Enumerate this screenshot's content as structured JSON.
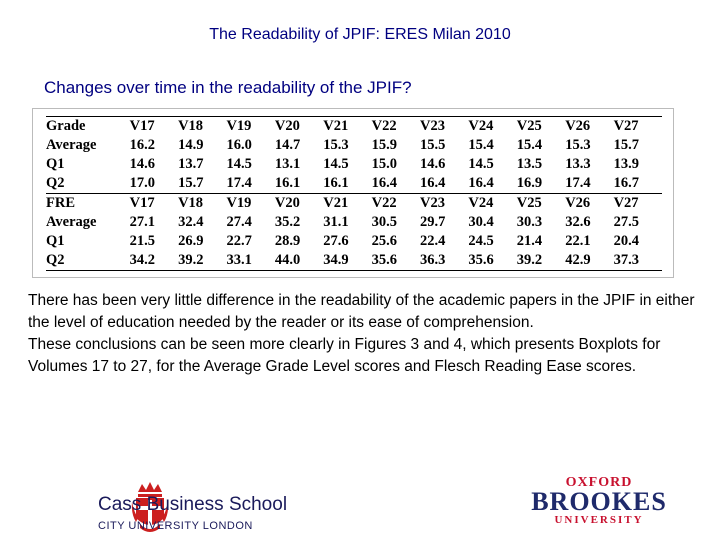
{
  "header": {
    "title": "The Readability of JPIF: ERES Milan 2010",
    "subtitle": "Changes over time in the readability of the JPIF?"
  },
  "table": {
    "sections": [
      {
        "header": [
          "Grade",
          "V17",
          "V18",
          "V19",
          "V20",
          "V21",
          "V22",
          "V23",
          "V24",
          "V25",
          "V26",
          "V27"
        ],
        "rows": [
          [
            "Average",
            "16.2",
            "14.9",
            "16.0",
            "14.7",
            "15.3",
            "15.9",
            "15.5",
            "15.4",
            "15.4",
            "15.3",
            "15.7"
          ],
          [
            "Q1",
            "14.6",
            "13.7",
            "14.5",
            "13.1",
            "14.5",
            "15.0",
            "14.6",
            "14.5",
            "13.5",
            "13.3",
            "13.9"
          ],
          [
            "Q2",
            "17.0",
            "15.7",
            "17.4",
            "16.1",
            "16.1",
            "16.4",
            "16.4",
            "16.4",
            "16.9",
            "17.4",
            "16.7"
          ]
        ]
      },
      {
        "header": [
          "FRE",
          "V17",
          "V18",
          "V19",
          "V20",
          "V21",
          "V22",
          "V23",
          "V24",
          "V25",
          "V26",
          "V27"
        ],
        "rows": [
          [
            "Average",
            "27.1",
            "32.4",
            "27.4",
            "35.2",
            "31.1",
            "30.5",
            "29.7",
            "30.4",
            "30.3",
            "32.6",
            "27.5"
          ],
          [
            "Q1",
            "21.5",
            "26.9",
            "22.7",
            "28.9",
            "27.6",
            "25.6",
            "22.4",
            "24.5",
            "21.4",
            "22.1",
            "20.4"
          ],
          [
            "Q2",
            "34.2",
            "39.2",
            "33.1",
            "44.0",
            "34.9",
            "35.6",
            "36.3",
            "35.6",
            "39.2",
            "42.9",
            "37.3"
          ]
        ]
      }
    ]
  },
  "body": {
    "paragraph1": "There has been very little difference in the readability of the academic papers in the JPIF in either the level of education needed by the reader or its ease of comprehension.",
    "paragraph2": "These conclusions can be seen more clearly in Figures 3 and 4, which presents Boxplots for Volumes 17 to 27, for the Average Grade Level scores and Flesch Reading Ease scores."
  },
  "logos": {
    "cass": {
      "name": "Cass Business School",
      "sub": "CITY UNIVERSITY LONDON",
      "color": "#cc1f1f"
    },
    "brookes": {
      "line1": "OXFORD",
      "line2": "BROOKES",
      "line3": "UNIVERSITY",
      "red": "#c8102e",
      "navy": "#1f2a6b"
    }
  }
}
